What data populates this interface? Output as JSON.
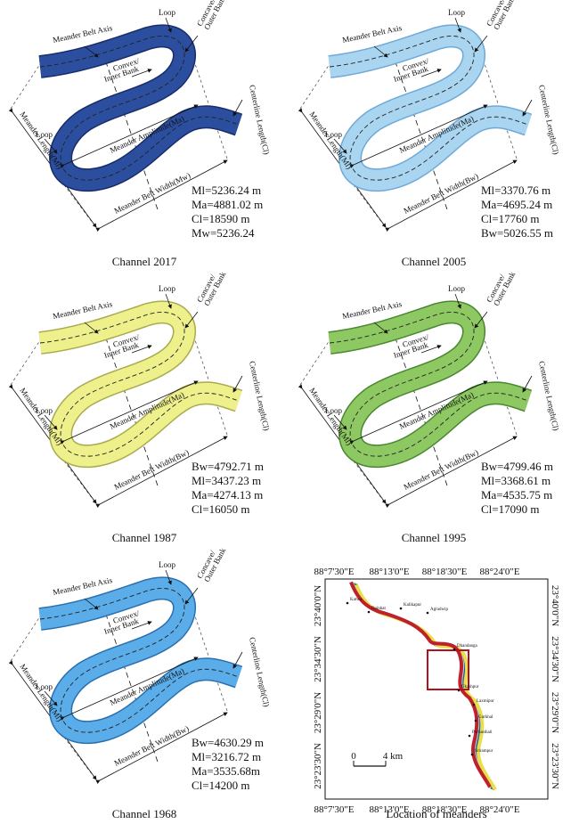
{
  "panels": [
    {
      "caption": "Channel 2017",
      "color": "#2b4f9e",
      "outline": "#182c6a",
      "labels": {
        "belt_axis": "Meander Belt Axis",
        "loop_top": "Loop",
        "concave": [
          "Concave/",
          "Outer Bank"
        ],
        "convex": [
          "Convex/",
          "Inner Bank"
        ],
        "amplitude": "Meander Amplitude(Ma)",
        "loop_left": "Loop",
        "length": "Meander Length(Ml)",
        "centerline": "Centerline Length(Cl)",
        "width": "Meander Belt Width(Mw)"
      },
      "stats": [
        "Ml=5236.24 m",
        "Ma=4881.02 m",
        "Cl=18590 m",
        "Mw=5236.24"
      ]
    },
    {
      "caption": "Channel 2005",
      "color": "#a9d5f1",
      "outline": "#6fa9d6",
      "labels": {
        "belt_axis": "Meander Belt Axis",
        "loop_top": "Loop",
        "concave": [
          "Concave/",
          "Outer Bank"
        ],
        "convex": [
          "Convex/",
          "Inner Bank"
        ],
        "amplitude": "Meander Amplitude(Ma)",
        "loop_left": "Loop",
        "length": "Meander Length(Ml)",
        "centerline": "Centerline Length(Cl)",
        "width": "Meander Belt Width(Bw)"
      },
      "stats": [
        "Ml=3370.76 m",
        "Ma=4695.24 m",
        "Cl=17760 m",
        "Bw=5026.55 m"
      ]
    },
    {
      "caption": "Channel 1987",
      "color": "#eef08c",
      "outline": "#a9ab4e",
      "labels": {
        "belt_axis": "Meander Belt Axis",
        "loop_top": "Loop",
        "concave": [
          "Concave/",
          "Outer Bank"
        ],
        "convex": [
          "Convex/",
          "Inner Bank"
        ],
        "amplitude": "Meander Amplitude(Ma)",
        "loop_left": "Loop",
        "length": "Meander Length(Ml)",
        "centerline": "Centerline Length(Cl)",
        "width": "Meander Belt Width(Bw)"
      },
      "stats": [
        "Bw=4792.71 m",
        "Ml=3437.23 m",
        "Ma=4274.13 m",
        "Cl=16050 m"
      ]
    },
    {
      "caption": "Channel 1995",
      "color": "#8dc862",
      "outline": "#4a8731",
      "labels": {
        "belt_axis": "Meander Belt Axis",
        "loop_top": "Loop",
        "concave": [
          "Concave/",
          "Outer Bank"
        ],
        "convex": [
          "Convex/",
          "Inner Bank"
        ],
        "amplitude": "Meander Amplitude(Ma)",
        "loop_left": "Loop",
        "length": "Meander Length(Ml)",
        "centerline": "Centerline Length(Cl)",
        "width": "Meander Belt Width(Bw)"
      },
      "stats": [
        "Bw=4799.46 m",
        "Ml=3368.61 m",
        "Ma=4535.75 m",
        "Cl=17090 m"
      ]
    },
    {
      "caption": "Channel 1968",
      "color": "#5badea",
      "outline": "#2b6fae",
      "labels": {
        "belt_axis": "Meander Belt Axis",
        "loop_top": "Loop",
        "concave": [
          "Concave/",
          "Outer Bank"
        ],
        "convex": [
          "Convex/",
          "Inner Bank"
        ],
        "amplitude": "Meander Amplitude(Ma)",
        "loop_left": "Loop",
        "length": "Meander Length(Ml)",
        "centerline": "Centerline Length(Cl)",
        "width": "Meander Belt Width(Bw)"
      },
      "stats": [
        "Bw=4630.29 m",
        "Ml=3216.72 m",
        "Ma=3535.68m",
        "Cl=14200 m"
      ]
    }
  ],
  "map": {
    "caption": "Location of meanders",
    "lon": [
      "88°7'30\"E",
      "88°13'0\"E",
      "88°18'30\"E",
      "88°24'0\"E"
    ],
    "lat": [
      "23°40'0\"N",
      "23°34'30\"N",
      "23°29'0\"N",
      "23°23'30\"N"
    ],
    "towns": [
      "Katwa",
      "Dainhat",
      "Kalikapur",
      "Agradwip",
      "Dhandanga",
      "Ukashpur",
      "Laxmipur",
      "Gurkhal",
      "Purbasthali",
      "Srirampur"
    ],
    "scale": [
      "0",
      "4 km"
    ]
  }
}
